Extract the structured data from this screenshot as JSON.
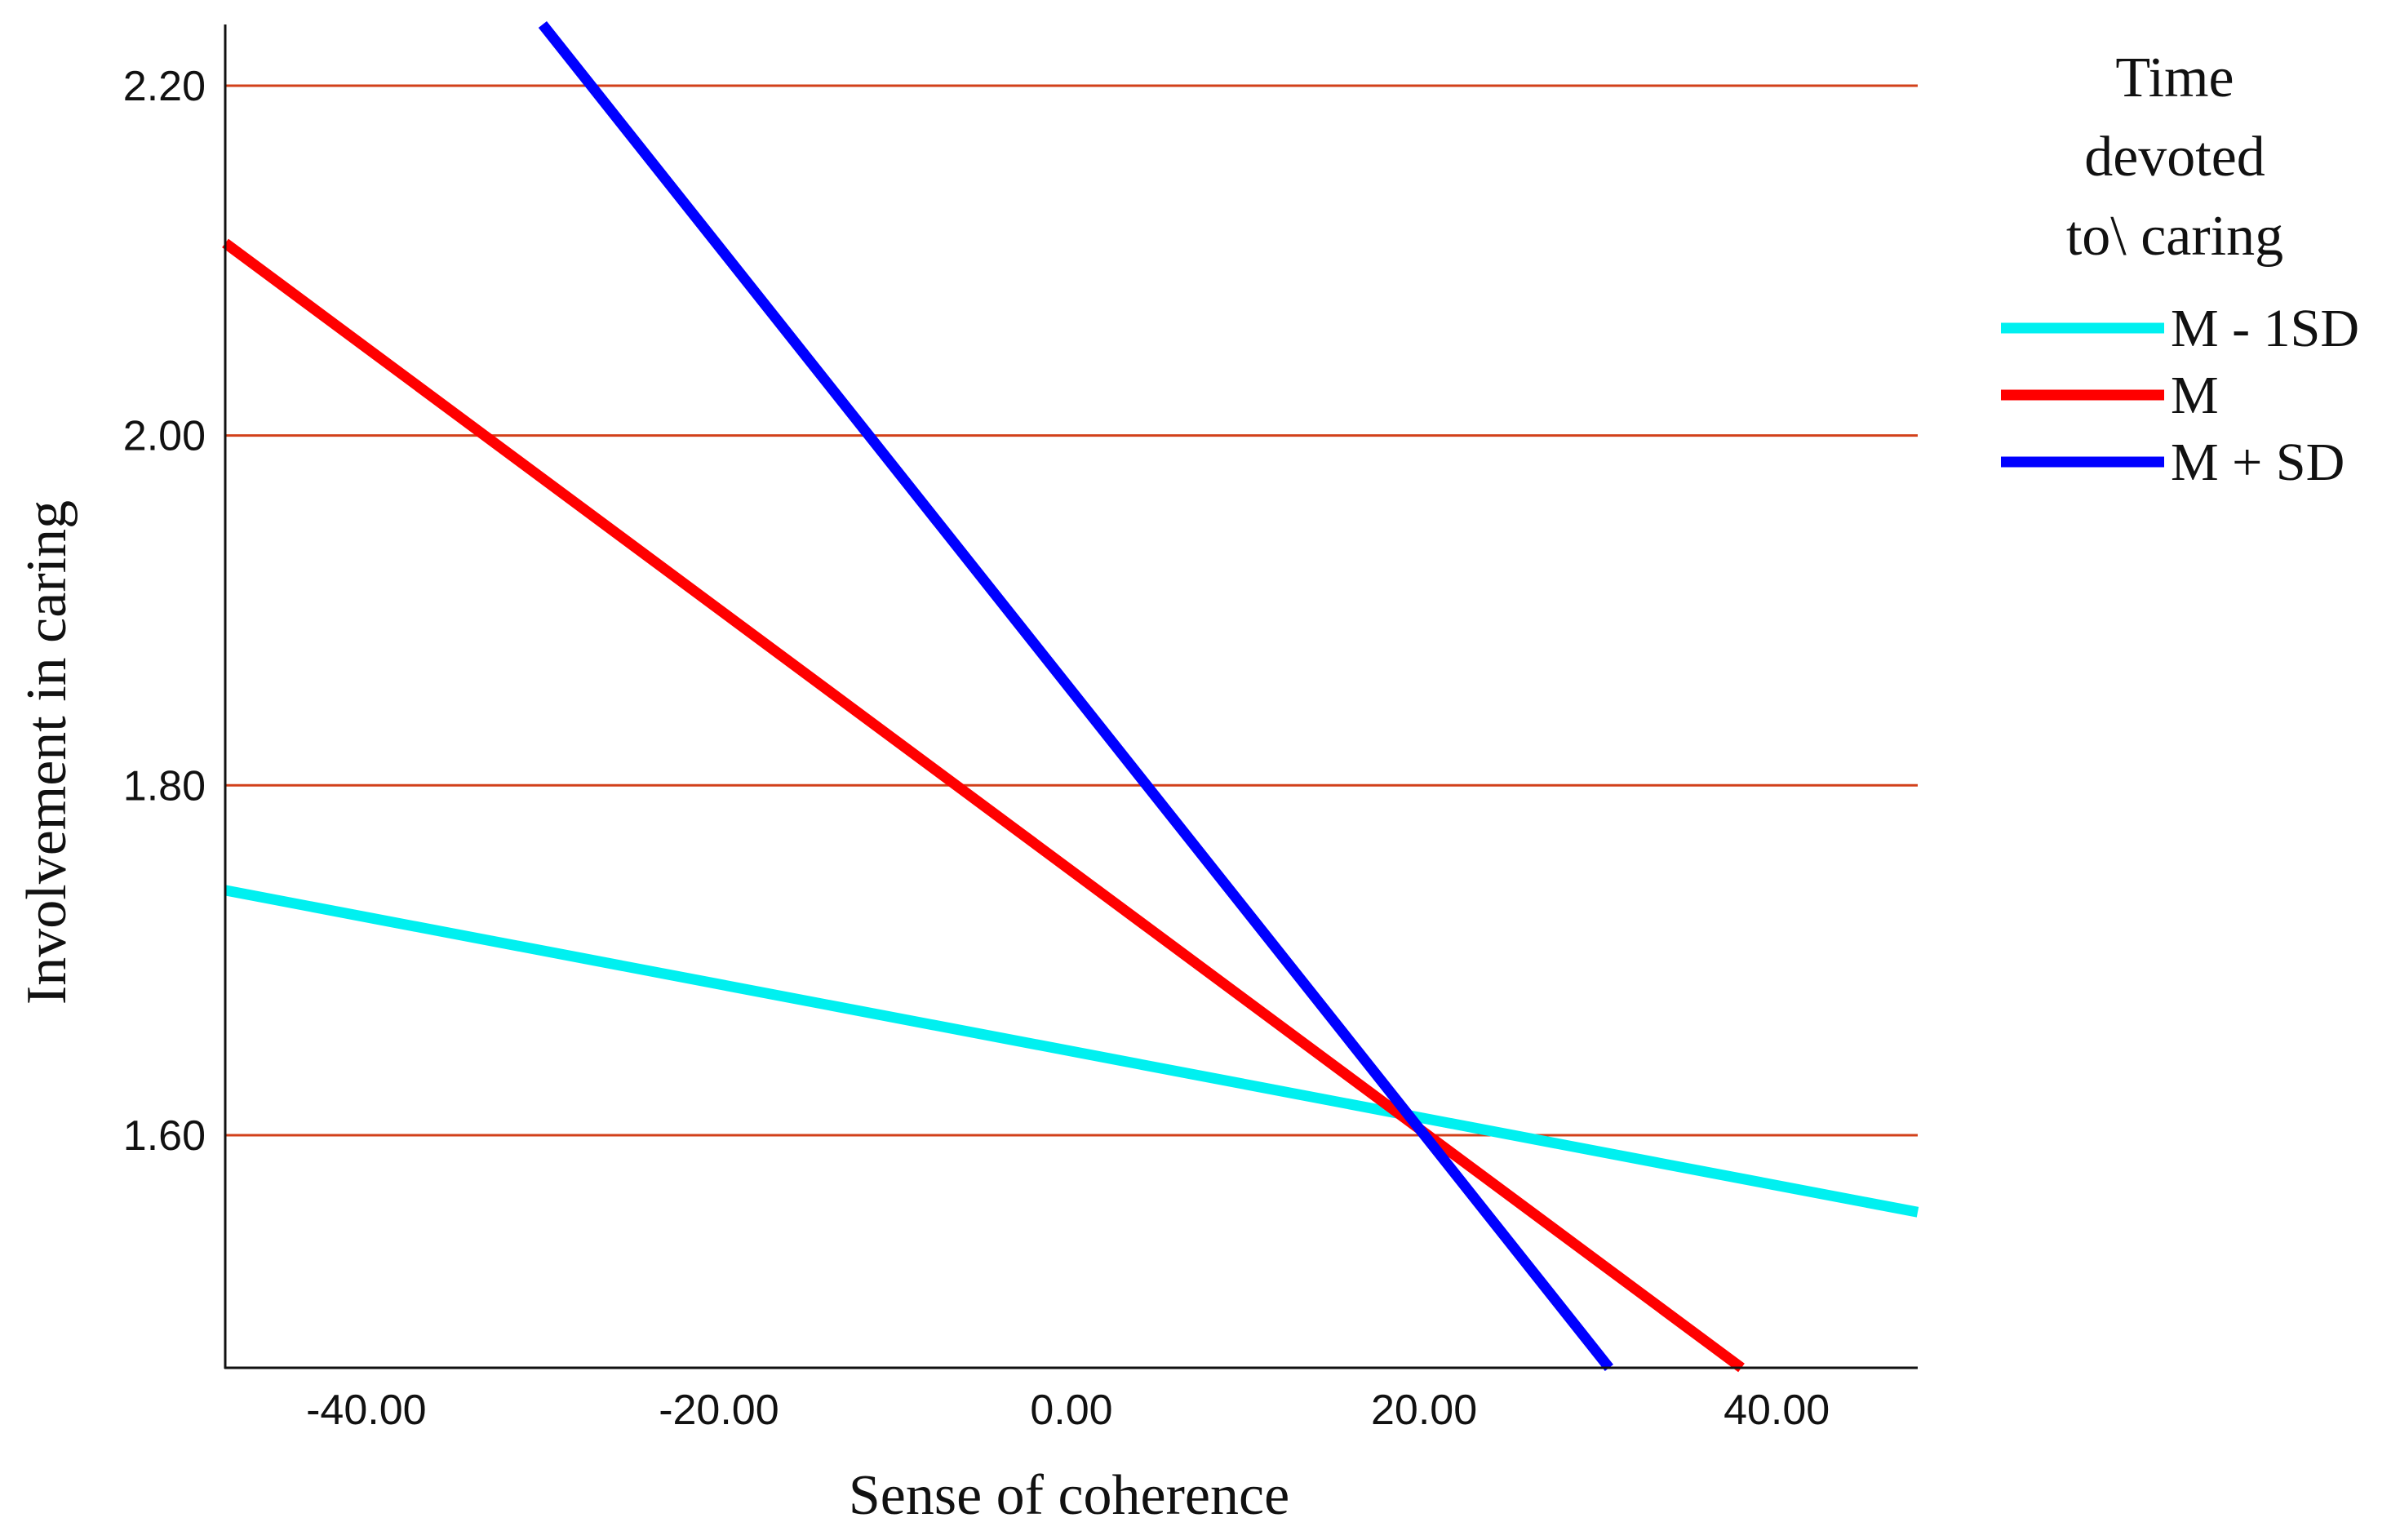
{
  "chart_data": {
    "type": "line",
    "xlabel": "Sense of coherence",
    "ylabel": "Involvement in caring",
    "xlim": [
      -48.0,
      48.0
    ],
    "ylim": [
      1.467,
      2.235
    ],
    "x_ticks": [
      -40,
      -20,
      0,
      20,
      40
    ],
    "x_tick_labels": [
      "-40.00",
      "-20.00",
      "0.00",
      "20.00",
      "40.00"
    ],
    "y_ticks": [
      1.6,
      1.8,
      2.0,
      2.2
    ],
    "y_tick_labels": [
      "1.60",
      "1.80",
      "2.00",
      "2.20"
    ],
    "grid": "horizontal",
    "grid_color": "#d2401a",
    "legend": {
      "title_lines": [
        "Time",
        "devoted",
        "to\\ caring"
      ],
      "placement": "right"
    },
    "series": [
      {
        "name": "M - 1SD",
        "color": "#00f0f0",
        "x": [
          -48.0,
          48.0
        ],
        "y": [
          1.74,
          1.556
        ]
      },
      {
        "name": "M",
        "color": "#ff0000",
        "x": [
          -48.0,
          38.0
        ],
        "y": [
          2.11,
          1.467
        ]
      },
      {
        "name": "M + SD",
        "color": "#0000ff",
        "x": [
          -30.0,
          30.5
        ],
        "y": [
          2.235,
          1.467
        ]
      }
    ]
  }
}
